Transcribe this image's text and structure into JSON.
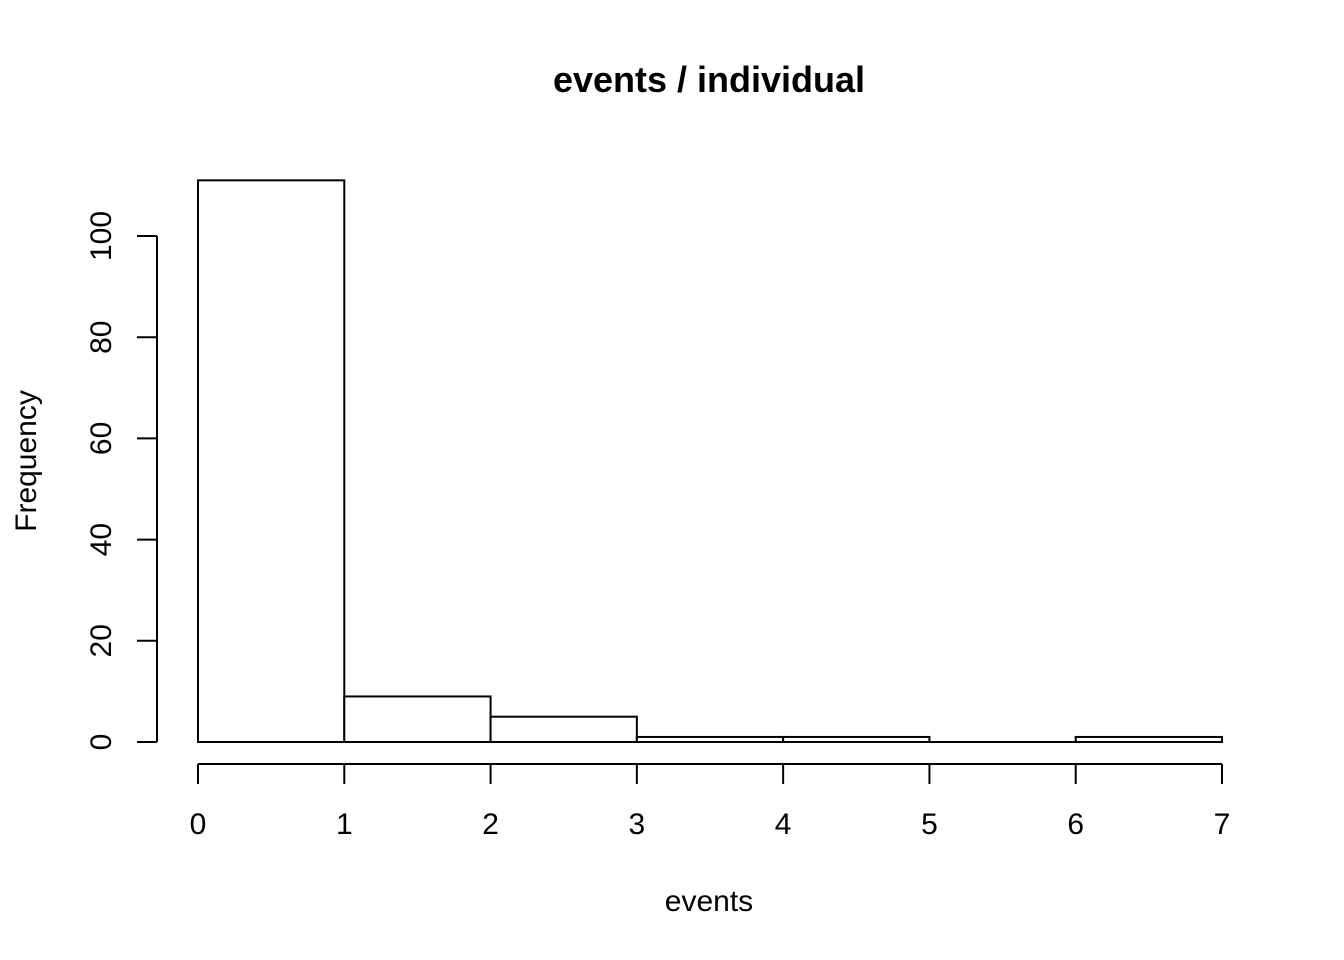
{
  "chart_data": {
    "type": "bar",
    "title": "events / individual",
    "xlabel": "events",
    "ylabel": "Frequency",
    "bins": [
      {
        "from": 0,
        "to": 1,
        "value": 111
      },
      {
        "from": 1,
        "to": 2,
        "value": 9
      },
      {
        "from": 2,
        "to": 3,
        "value": 5
      },
      {
        "from": 3,
        "to": 4,
        "value": 1
      },
      {
        "from": 4,
        "to": 5,
        "value": 1
      },
      {
        "from": 5,
        "to": 6,
        "value": 0
      },
      {
        "from": 6,
        "to": 7,
        "value": 1
      }
    ],
    "xlim": [
      0,
      7
    ],
    "ylim": [
      0,
      111
    ],
    "x_ticks": [
      0,
      1,
      2,
      3,
      4,
      5,
      6,
      7
    ],
    "y_ticks": [
      0,
      20,
      40,
      60,
      80,
      100
    ],
    "grid": false,
    "legend": "none",
    "colors": {
      "bar_fill": "#ffffff",
      "bar_stroke": "#000000",
      "axis": "#000000"
    }
  }
}
